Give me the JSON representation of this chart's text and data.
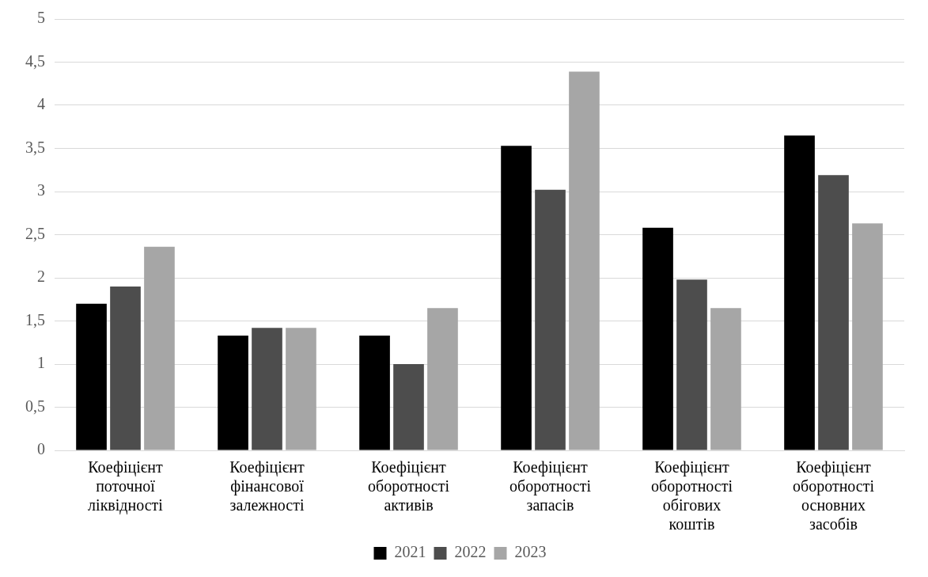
{
  "chart_data": {
    "type": "bar",
    "categories": [
      "Коефіцієнт поточної ліквідності",
      "Коефіцієнт фінансової залежності",
      "Коефіцієнт оборотності активів",
      "Коефіцієнт оборотності запасів",
      "Коефіцієнт оборотності обігових коштів",
      "Коефіцієнт оборотності основних засобів"
    ],
    "series": [
      {
        "name": "2021",
        "color": "#000000",
        "values": [
          1.7,
          1.33,
          1.33,
          3.53,
          2.58,
          3.65
        ]
      },
      {
        "name": "2022",
        "color": "#4d4d4d",
        "values": [
          1.9,
          1.42,
          1.0,
          3.02,
          1.98,
          3.19
        ]
      },
      {
        "name": "2023",
        "color": "#a6a6a6",
        "values": [
          2.36,
          1.42,
          1.65,
          4.39,
          1.65,
          2.63
        ]
      }
    ],
    "ylim": [
      0,
      5
    ],
    "yticks": [
      0,
      {
        "value": 0.5,
        "label": "0,5"
      },
      1,
      {
        "value": 1.5,
        "label": "1,5"
      },
      2,
      {
        "value": 2.5,
        "label": "2,5"
      },
      3,
      {
        "value": 3.5,
        "label": "3,5"
      },
      4,
      {
        "value": 4.5,
        "label": "4,5"
      },
      5
    ],
    "grid": "y",
    "legend": "bottom"
  }
}
